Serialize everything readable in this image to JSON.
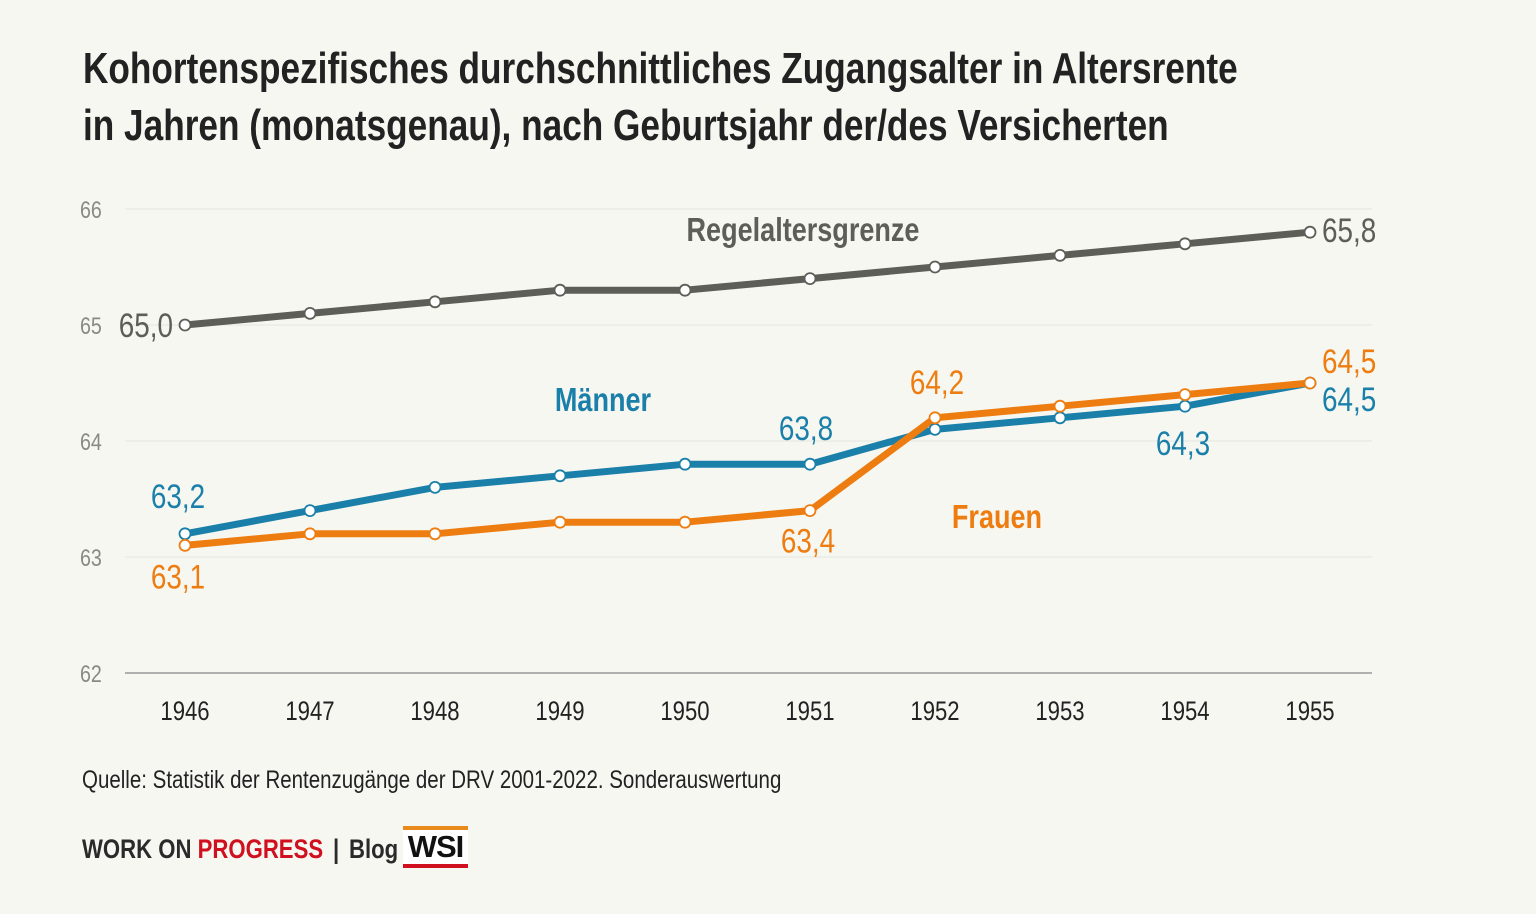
{
  "title_lines": [
    "Kohortenspezifisches durchschnittliches Zugangsalter in Altersrente",
    "in Jahren (monatsgenau), nach Geburtsjahr der/des Versicherten"
  ],
  "source": "Quelle: Statistik der Rentenzugänge der DRV 2001-2022. Sonderauswertung",
  "footer": {
    "work_on": "WORK ON",
    "progress": "PROGRESS",
    "separator": "|",
    "blog": "Blog",
    "logo": "WSI"
  },
  "chart_data": {
    "type": "line",
    "title": "Kohortenspezifisches durchschnittliches Zugangsalter in Altersrente in Jahren (monatsgenau), nach Geburtsjahr der/des Versicherten",
    "x": [
      1946,
      1947,
      1948,
      1949,
      1950,
      1951,
      1952,
      1953,
      1954,
      1955
    ],
    "ylim": [
      62,
      66
    ],
    "yticks": [
      62,
      63,
      64,
      65,
      66
    ],
    "grid": true,
    "legend": "inline labels",
    "series": [
      {
        "name": "Regelaltersgrenze",
        "color": "#5e5e59",
        "values": [
          65.0,
          65.1,
          65.2,
          65.3,
          65.3,
          65.4,
          65.5,
          65.6,
          65.7,
          65.8
        ]
      },
      {
        "name": "Männer",
        "color": "#1b80a9",
        "values": [
          63.2,
          63.4,
          63.6,
          63.7,
          63.8,
          63.8,
          64.1,
          64.2,
          64.3,
          64.5
        ]
      },
      {
        "name": "Frauen",
        "color": "#ee7d11",
        "values": [
          63.1,
          63.2,
          63.2,
          63.3,
          63.3,
          63.4,
          64.2,
          64.3,
          64.4,
          64.5
        ]
      }
    ],
    "data_labels": [
      {
        "series": 0,
        "year": 1946,
        "text": "65,0"
      },
      {
        "series": 0,
        "year": 1955,
        "text": "65,8"
      },
      {
        "series": 1,
        "year": 1946,
        "text": "63,2"
      },
      {
        "series": 1,
        "year": 1951,
        "text": "63,8"
      },
      {
        "series": 1,
        "year": 1954,
        "text": "64,3"
      },
      {
        "series": 1,
        "year": 1955,
        "text": "64,5"
      },
      {
        "series": 2,
        "year": 1946,
        "text": "63,1"
      },
      {
        "series": 2,
        "year": 1951,
        "text": "63,4"
      },
      {
        "series": 2,
        "year": 1952,
        "text": "64,2"
      },
      {
        "series": 2,
        "year": 1955,
        "text": "64,5"
      }
    ]
  }
}
